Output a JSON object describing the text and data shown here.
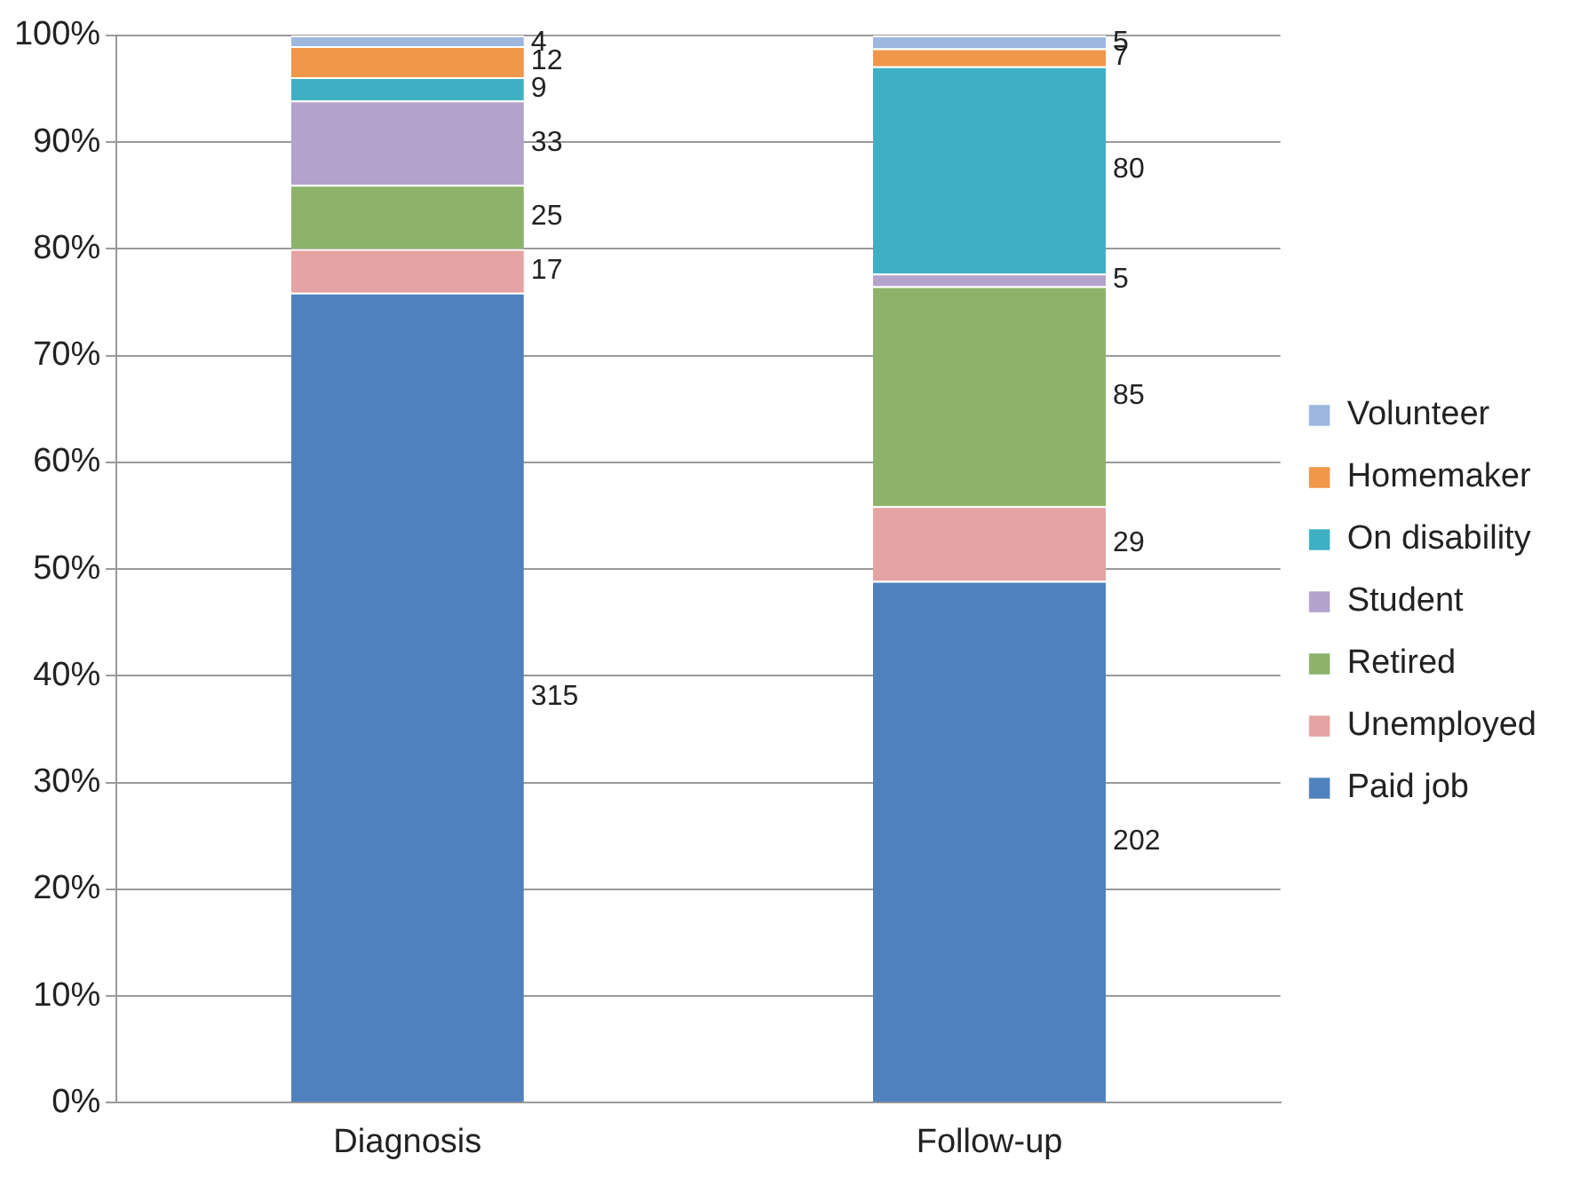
{
  "chart_data": {
    "type": "bar",
    "stacked": true,
    "categories": [
      "Diagnosis",
      "Follow-up"
    ],
    "ylim": [
      0,
      100
    ],
    "yticks": [
      {
        "value": 0,
        "label": "0%"
      },
      {
        "value": 10,
        "label": "10%"
      },
      {
        "value": 20,
        "label": "20%"
      },
      {
        "value": 30,
        "label": "30%"
      },
      {
        "value": 40,
        "label": "40%"
      },
      {
        "value": 50,
        "label": "50%"
      },
      {
        "value": 60,
        "label": "60%"
      },
      {
        "value": 70,
        "label": "70%"
      },
      {
        "value": 80,
        "label": "80%"
      },
      {
        "value": 90,
        "label": "90%"
      },
      {
        "value": 100,
        "label": "100%"
      }
    ],
    "grid": "y",
    "legend": "right",
    "series": [
      {
        "name": "Paid job",
        "color": "#4f81bd",
        "values": [
          75.9,
          48.9
        ]
      },
      {
        "name": "Unemployed",
        "color": "#e6a3a3",
        "values": [
          4.1,
          7.0
        ]
      },
      {
        "name": "Retired",
        "color": "#8db36a",
        "values": [
          6.0,
          20.6
        ]
      },
      {
        "name": "Student",
        "color": "#b3a2cc",
        "values": [
          7.9,
          1.2
        ]
      },
      {
        "name": "On disability",
        "color": "#3fb0c4",
        "values": [
          2.2,
          19.4
        ]
      },
      {
        "name": "Homemaker",
        "color": "#f0974a",
        "values": [
          2.9,
          1.7
        ]
      },
      {
        "name": "Volunteer",
        "color": "#9db7de",
        "values": [
          1.0,
          1.2
        ]
      }
    ],
    "annotations": [
      "315",
      "17",
      "25",
      "33",
      "9",
      "12",
      "4",
      "202",
      "29",
      "85",
      "5",
      "80",
      "7",
      "5"
    ]
  }
}
